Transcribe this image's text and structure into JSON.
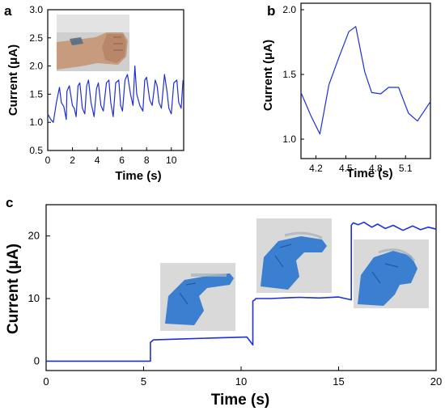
{
  "panels": {
    "a": "a",
    "b": "b",
    "c": "c"
  },
  "colors": {
    "series": "#1f2fd6",
    "axis": "#000000",
    "glove": "#3a7fd0",
    "skin": "#c79b7d",
    "photo_bg": "#d9d9d9"
  },
  "photos": {
    "a": "wrist-sensor-photo",
    "c": [
      "finger-slightly-bent-photo",
      "finger-half-bent-photo",
      "finger-fully-bent-photo"
    ]
  },
  "chart_data": [
    {
      "id": "a",
      "type": "line",
      "xlabel": "Time (s)",
      "ylabel": "Current (μA)",
      "xlim": [
        0,
        11
      ],
      "ylim": [
        0.5,
        3.0
      ],
      "xticks": [
        0,
        2,
        4,
        6,
        8,
        10
      ],
      "xtick_labels": [
        "0",
        "2",
        "4",
        "6",
        "8",
        "10"
      ],
      "yticks": [
        0.5,
        1.0,
        1.5,
        2.0,
        2.5,
        3.0
      ],
      "ytick_labels": [
        "0.5",
        "1.0",
        "1.5",
        "2.0",
        "2.5",
        "3.0"
      ],
      "series": [
        {
          "x": [
            0,
            0.25,
            0.45,
            0.7,
            0.95,
            1.1,
            1.3,
            1.5,
            1.55,
            1.75,
            2.0,
            2.15,
            2.3,
            2.45,
            2.6,
            2.8,
            3.0,
            3.15,
            3.3,
            3.5,
            3.75,
            3.95,
            4.1,
            4.3,
            4.5,
            4.75,
            4.95,
            5.1,
            5.3,
            5.5,
            5.75,
            5.9,
            6.05,
            6.25,
            6.45,
            6.7,
            6.9,
            7.05,
            7.2,
            7.45,
            7.7,
            7.85,
            8.0,
            8.25,
            8.45,
            8.7,
            8.85,
            9.0,
            9.2,
            9.45,
            9.65,
            9.8,
            10.0,
            10.2,
            10.45,
            10.6,
            10.8,
            10.95
          ],
          "y": [
            1.15,
            1.05,
            1.0,
            1.35,
            1.62,
            1.35,
            1.28,
            1.05,
            1.55,
            1.65,
            1.3,
            1.25,
            1.1,
            1.65,
            1.7,
            1.25,
            1.15,
            1.65,
            1.75,
            1.35,
            1.1,
            1.6,
            1.7,
            1.3,
            1.2,
            1.7,
            1.75,
            1.35,
            1.1,
            1.7,
            1.75,
            1.3,
            1.2,
            1.75,
            1.85,
            1.5,
            1.3,
            2.0,
            1.5,
            1.3,
            1.2,
            1.75,
            1.8,
            1.4,
            1.3,
            1.75,
            1.65,
            1.35,
            1.25,
            1.85,
            1.55,
            1.25,
            1.15,
            1.7,
            1.75,
            1.35,
            1.25,
            1.75
          ]
        }
      ]
    },
    {
      "id": "b",
      "type": "line",
      "xlabel": "Time (s)",
      "ylabel": "Current (μA)",
      "xlim": [
        4.05,
        5.35
      ],
      "ylim": [
        0.85,
        2.05
      ],
      "xticks": [
        4.2,
        4.5,
        4.8,
        5.1
      ],
      "xtick_labels": [
        "4.2",
        "4.5",
        "4.8",
        "5.1"
      ],
      "yticks": [
        1.0,
        1.5,
        2.0
      ],
      "ytick_labels": [
        "1.0",
        "1.5",
        "2.0"
      ],
      "series": [
        {
          "x": [
            4.05,
            4.15,
            4.24,
            4.33,
            4.43,
            4.53,
            4.6,
            4.69,
            4.76,
            4.85,
            4.93,
            5.03,
            5.13,
            5.22,
            5.35
          ],
          "y": [
            1.36,
            1.18,
            1.04,
            1.42,
            1.63,
            1.83,
            1.87,
            1.52,
            1.36,
            1.35,
            1.4,
            1.4,
            1.2,
            1.14,
            1.29
          ]
        }
      ]
    },
    {
      "id": "c",
      "type": "line",
      "xlabel": "Time (s)",
      "ylabel": "Current (μA)",
      "xlim": [
        0,
        20
      ],
      "ylim": [
        -1.5,
        25
      ],
      "xticks": [
        0,
        5,
        10,
        15,
        20
      ],
      "xtick_labels": [
        "0",
        "5",
        "10",
        "15",
        "20"
      ],
      "yticks": [
        0,
        10,
        20
      ],
      "ytick_labels": [
        "0",
        "10",
        "20"
      ],
      "series": [
        {
          "x": [
            0,
            5.35,
            5.35,
            5.5,
            7.0,
            8.5,
            10.3,
            10.6,
            10.6,
            10.7,
            10.75,
            11.5,
            12.5,
            13.0,
            14.0,
            15.0,
            15.65,
            15.65,
            15.75,
            16.0,
            16.3,
            16.7,
            17.0,
            17.4,
            17.8,
            18.3,
            18.8,
            19.2,
            19.6,
            20.0
          ],
          "y": [
            0,
            0,
            3.0,
            3.4,
            3.55,
            3.7,
            3.85,
            2.6,
            9.6,
            9.8,
            10.0,
            10.0,
            10.15,
            10.2,
            10.1,
            10.25,
            9.8,
            21.7,
            22.1,
            21.8,
            22.2,
            21.4,
            21.9,
            21.2,
            21.7,
            20.9,
            21.6,
            21.0,
            21.4,
            21.1
          ]
        }
      ]
    }
  ]
}
